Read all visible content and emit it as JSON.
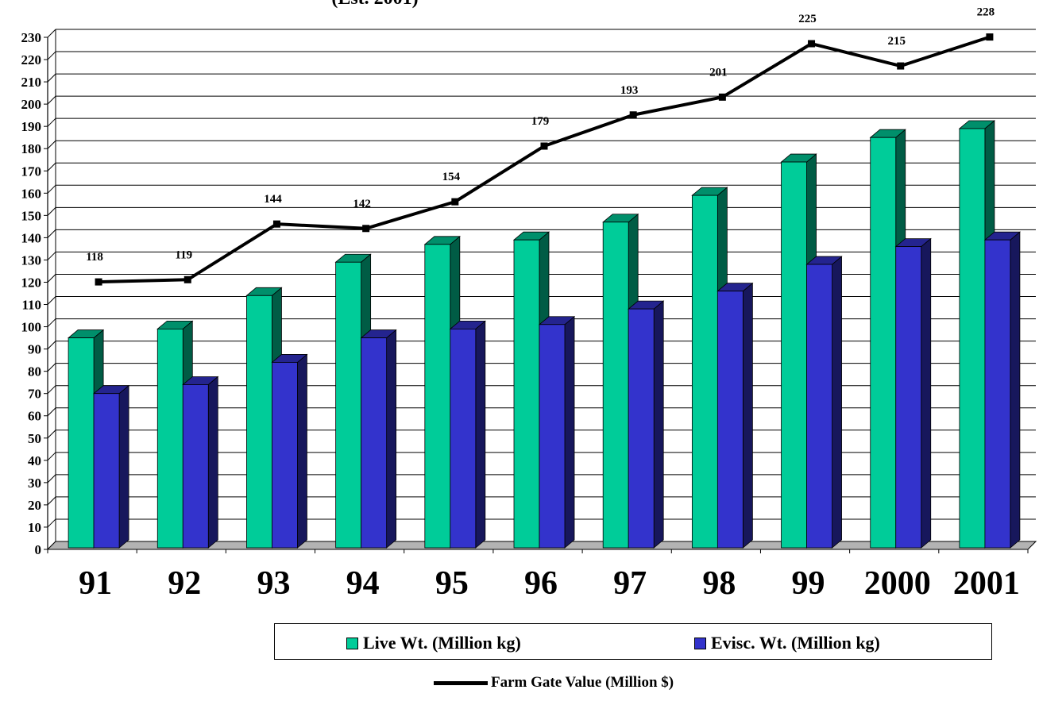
{
  "chart_data": {
    "type": "bar",
    "title_fragment": "(Est. 2001)",
    "categories": [
      "91",
      "92",
      "93",
      "94",
      "95",
      "96",
      "97",
      "98",
      "99",
      "2000",
      "2001"
    ],
    "series": [
      {
        "name": "Live Wt. (Million kg)",
        "type": "bar",
        "color": "#00cc99",
        "values": [
          95,
          99,
          114,
          129,
          137,
          139,
          147,
          159,
          174,
          185,
          189
        ]
      },
      {
        "name": "Evisc. Wt. (Million kg)",
        "type": "bar",
        "color": "#3333cc",
        "values": [
          70,
          74,
          84,
          95,
          99,
          101,
          108,
          116,
          128,
          136,
          139
        ]
      },
      {
        "name": "Farm Gate Value (Million $)",
        "type": "line",
        "color": "#000000",
        "values": [
          118,
          119,
          144,
          142,
          154,
          179,
          193,
          201,
          225,
          215,
          228
        ]
      }
    ],
    "ylim": [
      0,
      230
    ],
    "yticks": [
      0,
      10,
      20,
      30,
      40,
      50,
      60,
      70,
      80,
      90,
      100,
      110,
      120,
      130,
      140,
      150,
      160,
      170,
      180,
      190,
      200,
      210,
      220,
      230
    ],
    "grid": true,
    "legend": "bottom"
  }
}
